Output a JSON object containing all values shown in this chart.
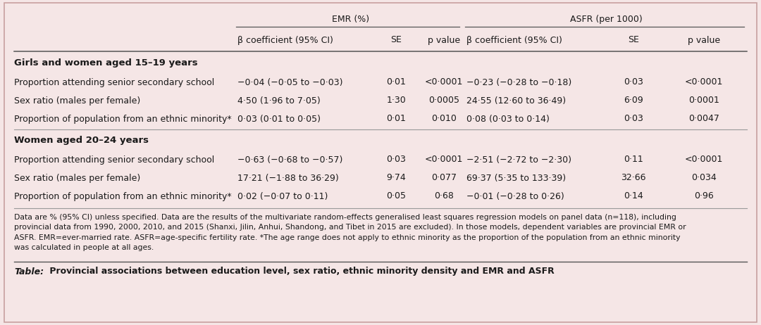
{
  "background_color": "#f5e6e6",
  "border_color": "#c8a0a0",
  "title_caption_italic": "Table:",
  "title_caption_bold": " Provincial associations between education level, sex ratio, ethnic minority density and EMR and ASFR",
  "footnote": "Data are % (95% CI) unless specified. Data are the results of the multivariate random-effects generalised least squares regression models on panel data (n=118), including\nprovincial data from 1990, 2000, 2010, and 2015 (Shanxi, Jilin, Anhui, Shandong, and Tibet in 2015 are excluded). In those models, dependent variables are provincial EMR or\nASFR. EMR=ever-married rate. ASFR=age-specific fertility rate. *The age range does not apply to ethnic minority as the proportion of the population from an ethnic minority\nwas calculated in people at all ages.",
  "group_headers": [
    "Girls and women aged 15–19 years",
    "Women aged 20–24 years"
  ],
  "emr_label": "EMR (%)",
  "asfr_label": "ASFR (per 1000)",
  "col_sub_headers": [
    "β coefficient (95% CI)",
    "SE",
    "p value",
    "β coefficient (95% CI)",
    "SE",
    "p value"
  ],
  "row_labels": [
    "Proportion attending senior secondary school",
    "Sex ratio (males per female)",
    "Proportion of population from an ethnic minority*",
    "Proportion attending senior secondary school",
    "Sex ratio (males per female)",
    "Proportion of population from an ethnic minority*"
  ],
  "data": [
    [
      "−0·04 (−0·05 to −0·03)",
      "0·01",
      "<0·0001",
      "−0·23 (−0·28 to −0·18)",
      "0·03",
      "<0·0001"
    ],
    [
      "4·50 (1·96 to 7·05)",
      "1·30",
      "0·0005",
      "24·55 (12·60 to 36·49)",
      "6·09",
      "0·0001"
    ],
    [
      "0·03 (0·01 to 0·05)",
      "0·01",
      "0·010",
      "0·08 (0·03 to 0·14)",
      "0·03",
      "0·0047"
    ],
    [
      "−0·63 (−0·68 to −0·57)",
      "0·03",
      "<0·0001",
      "−2·51 (−2·72 to −2·30)",
      "0·11",
      "<0·0001"
    ],
    [
      "17·21 (−1·88 to 36·29)",
      "9·74",
      "0·077",
      "69·37 (5·35 to 133·39)",
      "32·66",
      "0·034"
    ],
    [
      "0·02 (−0·07 to 0·11)",
      "0·05",
      "0·68",
      "−0·01 (−0·28 to 0·26)",
      "0·14",
      "0·96"
    ]
  ],
  "text_color": "#1a1a1a",
  "line_color": "#555555",
  "thin_line_color": "#999999"
}
